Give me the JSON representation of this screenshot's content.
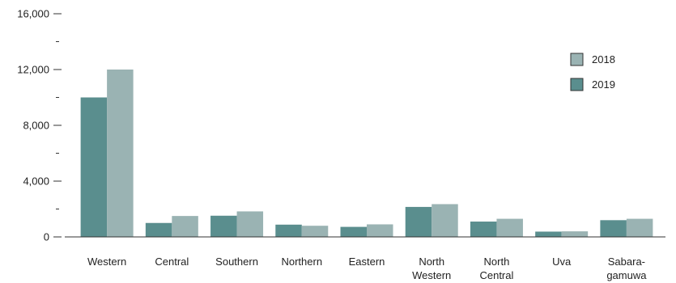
{
  "chart_data": {
    "type": "bar",
    "categories": [
      [
        "Western"
      ],
      [
        "Central"
      ],
      [
        "Southern"
      ],
      [
        "Northern"
      ],
      [
        "Eastern"
      ],
      [
        "North",
        "Western"
      ],
      [
        "North",
        "Central"
      ],
      [
        "Uva"
      ],
      [
        "Sabara-",
        "gamuwa"
      ]
    ],
    "series": [
      {
        "name": "2019",
        "color": "#5a8e8e",
        "values": [
          10000,
          1000,
          1520,
          880,
          720,
          2150,
          1100,
          380,
          1200
        ]
      },
      {
        "name": "2018",
        "color": "#9ab3b3",
        "values": [
          12000,
          1500,
          1830,
          800,
          900,
          2350,
          1300,
          400,
          1300
        ]
      }
    ],
    "ylim": [
      0,
      16000
    ],
    "y_ticks": [
      {
        "value": 0,
        "label": "0"
      },
      {
        "value": 2000,
        "label": ""
      },
      {
        "value": 4000,
        "label": "4,000"
      },
      {
        "value": 6000,
        "label": ""
      },
      {
        "value": 8000,
        "label": "8,000"
      },
      {
        "value": 10000,
        "label": ""
      },
      {
        "value": 12000,
        "label": "12,000"
      },
      {
        "value": 14000,
        "label": ""
      },
      {
        "value": 16000,
        "label": "16,000"
      }
    ],
    "legend": {
      "placement": "top-right",
      "entries": [
        {
          "label": "2018",
          "color": "#9ab3b3"
        },
        {
          "label": "2019",
          "color": "#5a8e8e"
        }
      ]
    },
    "grid": false,
    "title": "",
    "xlabel": "",
    "ylabel": ""
  }
}
